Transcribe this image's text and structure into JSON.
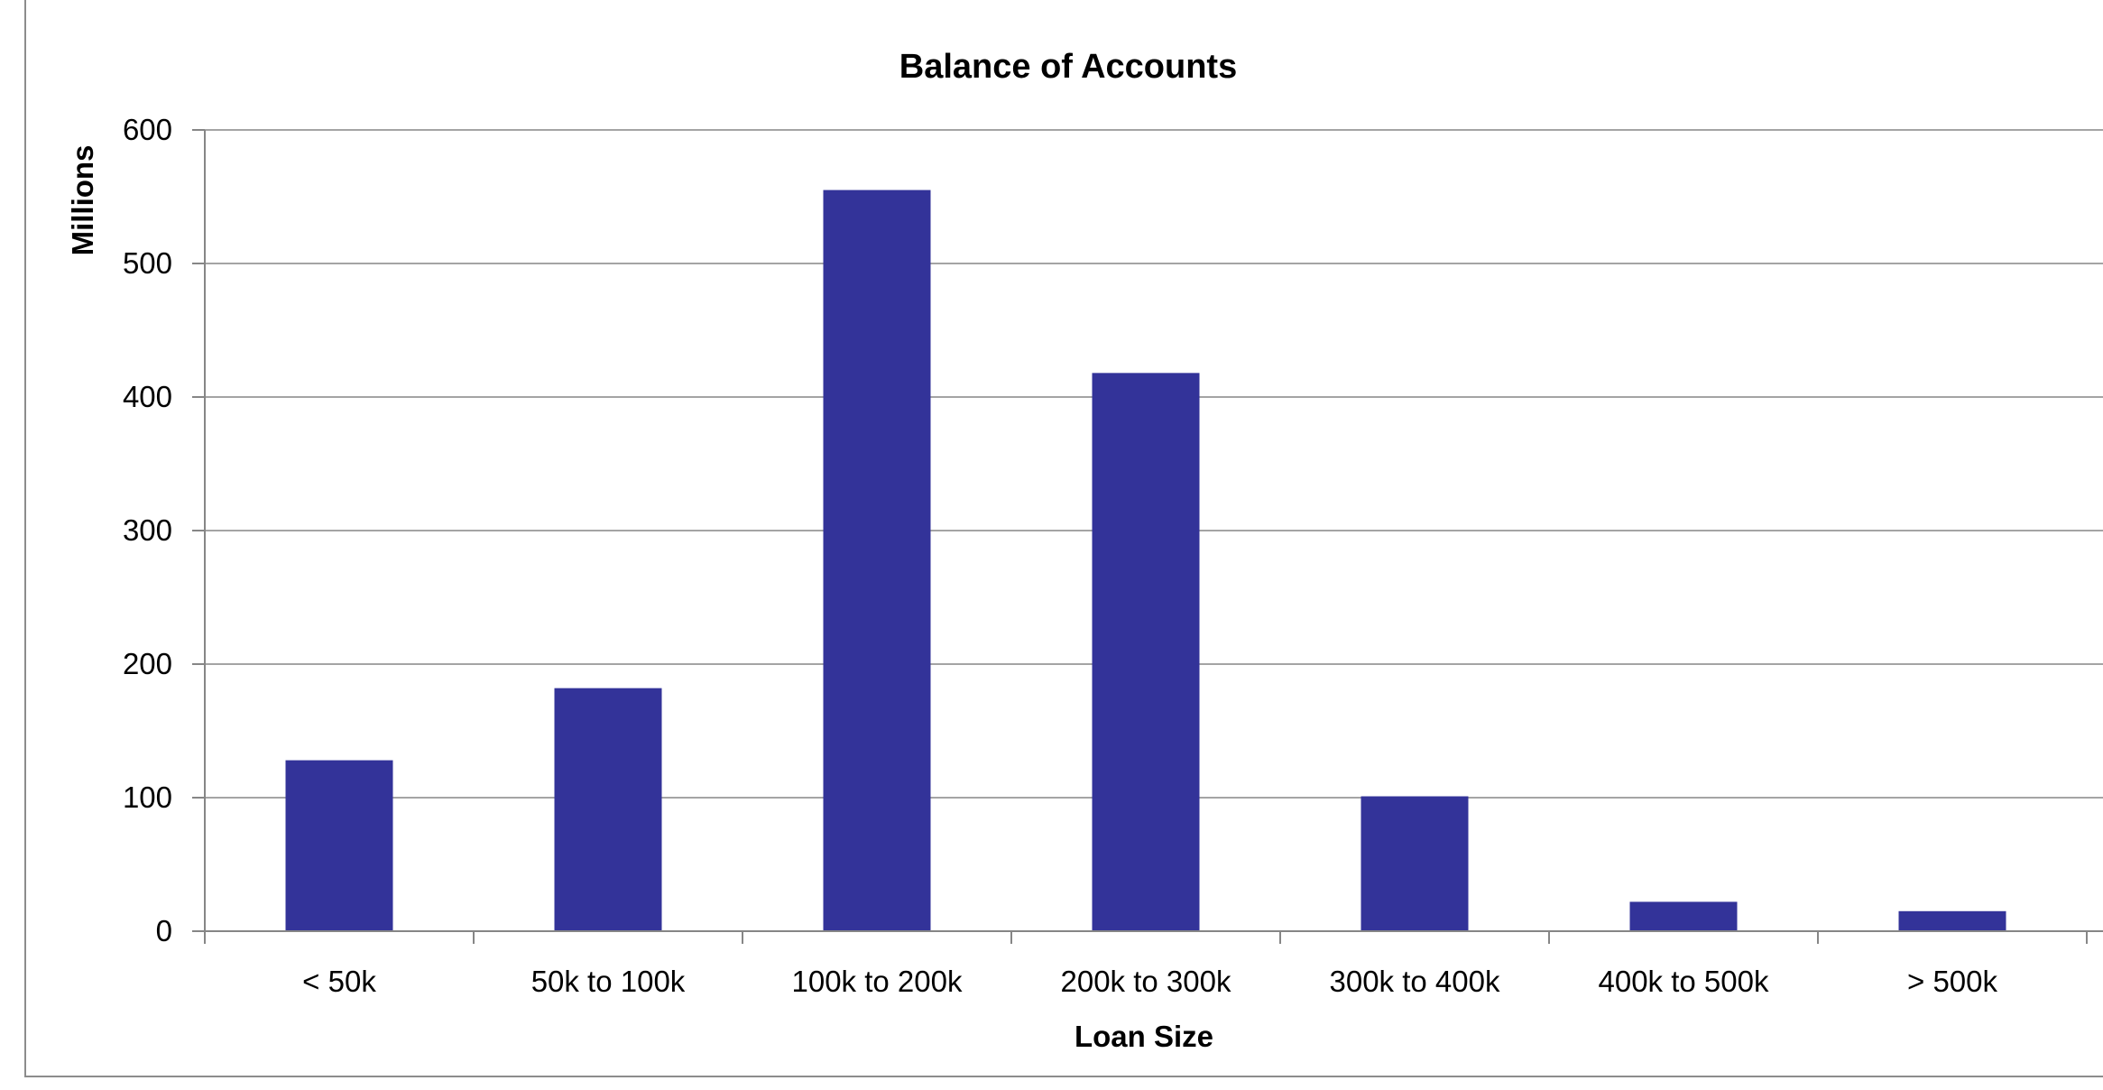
{
  "chart_data": {
    "type": "bar",
    "title": "Balance of Accounts",
    "xlabel": "Loan Size",
    "ylabel": "Millions",
    "categories": [
      "< 50k",
      "50k to 100k",
      "100k to 200k",
      "200k to 300k",
      "300k to 400k",
      "400k to 500k",
      "> 500k"
    ],
    "values": [
      128,
      182,
      555,
      418,
      101,
      22,
      15
    ],
    "ylim": [
      0,
      600
    ],
    "yticks": [
      0,
      100,
      200,
      300,
      400,
      500,
      600
    ],
    "grid": true,
    "legend": "none",
    "bar_color": "#333399"
  }
}
